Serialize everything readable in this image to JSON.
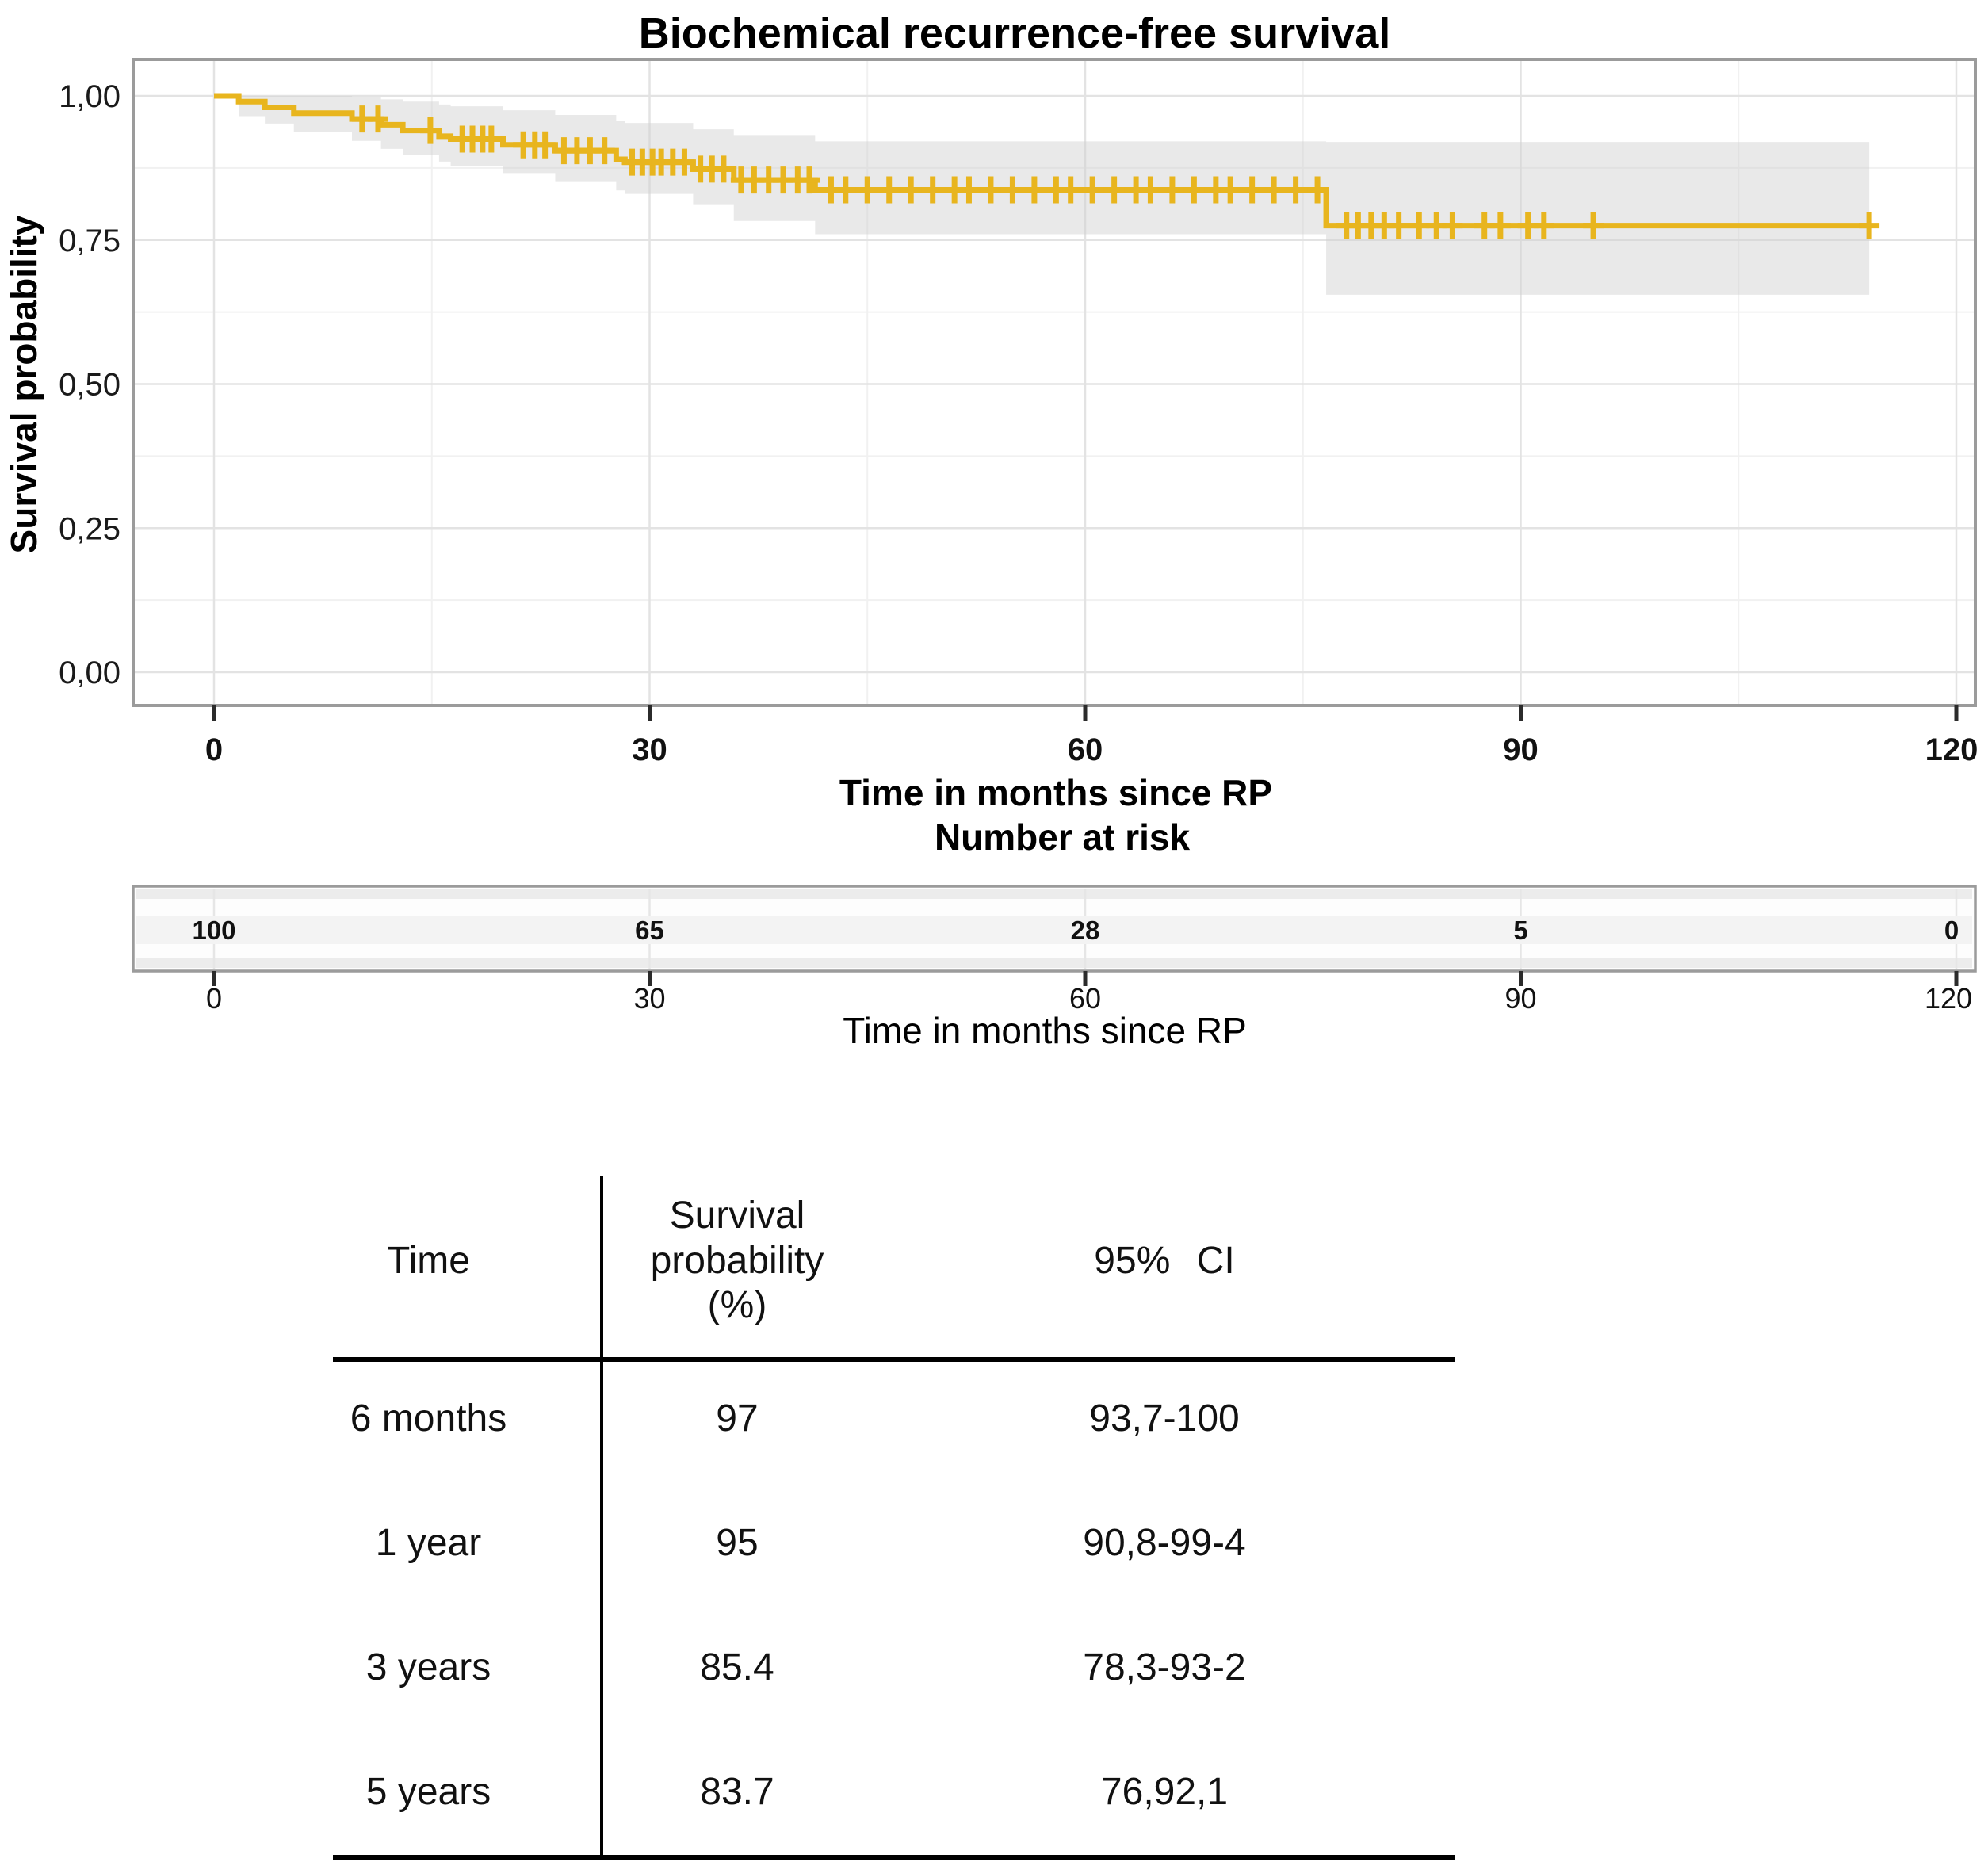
{
  "figure": {
    "title": "Biochemical recurrence-free survival",
    "y_axis_label": "Survival probability",
    "x_axis_label": "Time in months since RP",
    "risk_title": "Number at risk",
    "risk_axis_label": "Time in months since RP"
  },
  "chart_data": {
    "type": "line",
    "subtype": "kaplan-meier-step",
    "title": "Biochemical recurrence-free survival",
    "xlabel": "Time in months since RP",
    "ylabel": "Survival probability",
    "xlim": [
      0,
      120
    ],
    "ylim": [
      0.0,
      1.0
    ],
    "x_ticks": [
      0,
      30,
      60,
      90,
      120
    ],
    "y_ticks": [
      1.0,
      0.75,
      0.5,
      0.25,
      0.0
    ],
    "y_tick_labels": [
      "1,00",
      "0,75",
      "0,50",
      "0,25",
      "0,00"
    ],
    "grid": true,
    "legend": false,
    "colors": {
      "curve": "#E8B51E",
      "ci_band": "#cfcfcf",
      "grid_major": "#e3e3e3",
      "grid_minor": "#f1f1f1",
      "frame": "#9b9b9b"
    },
    "series": [
      {
        "name": "Biochemical recurrence-free survival",
        "start_value": 1.0,
        "end_time": 114,
        "steps": [
          [
            1.7,
            0.99
          ],
          [
            3.5,
            0.98
          ],
          [
            5.5,
            0.97
          ],
          [
            9.5,
            0.96
          ],
          [
            11.5,
            0.95
          ],
          [
            13,
            0.94
          ],
          [
            15.5,
            0.93
          ],
          [
            16.3,
            0.925
          ],
          [
            19.9,
            0.915
          ],
          [
            23.5,
            0.905
          ],
          [
            27.7,
            0.89
          ],
          [
            28.3,
            0.885
          ],
          [
            33,
            0.873
          ],
          [
            35.8,
            0.854
          ],
          [
            41.4,
            0.837
          ],
          [
            76.6,
            0.775
          ]
        ],
        "censor_times": [
          10.2,
          11.3,
          14.9,
          17.1,
          17.8,
          18.5,
          19.1,
          21.3,
          22.1,
          22.8,
          24.1,
          25.0,
          25.9,
          26.9,
          28.8,
          29.5,
          30.2,
          30.8,
          31.6,
          32.4,
          33.5,
          34.3,
          35.1,
          36.3,
          37.2,
          38.2,
          39.2,
          40.2,
          41.0,
          42.5,
          43.5,
          45.0,
          46.5,
          48.0,
          49.5,
          51.0,
          52.0,
          53.5,
          55.0,
          56.5,
          58.0,
          59.0,
          60.5,
          62.0,
          63.5,
          64.5,
          66.0,
          67.5,
          69.0,
          70.0,
          71.5,
          73.0,
          74.5,
          76.0,
          78.0,
          78.8,
          79.7,
          80.6,
          81.6,
          83.0,
          84.2,
          85.3,
          87.5,
          88.6,
          90.5,
          91.6,
          95.0,
          114
        ],
        "ci_steps": [
          [
            0,
            1.0,
            1.0
          ],
          [
            1.7,
            0.965,
            1.0
          ],
          [
            3.5,
            0.952,
            1.0
          ],
          [
            5.5,
            0.937,
            1.0
          ],
          [
            9.5,
            0.922,
            0.998
          ],
          [
            11.5,
            0.908,
            0.994
          ],
          [
            13,
            0.898,
            0.99
          ],
          [
            15.5,
            0.886,
            0.985
          ],
          [
            16.3,
            0.879,
            0.982
          ],
          [
            19.9,
            0.866,
            0.975
          ],
          [
            23.5,
            0.852,
            0.967
          ],
          [
            27.7,
            0.836,
            0.956
          ],
          [
            28.3,
            0.83,
            0.953
          ],
          [
            33,
            0.812,
            0.942
          ],
          [
            35.8,
            0.783,
            0.932
          ],
          [
            41.4,
            0.76,
            0.921
          ],
          [
            76.6,
            0.655,
            0.92
          ]
        ]
      }
    ],
    "number_at_risk": {
      "title": "Number at risk",
      "times": [
        0,
        30,
        60,
        90,
        120
      ],
      "counts": [
        "100",
        "65",
        "28",
        "5",
        "0"
      ],
      "axis_label": "Time in months since RP"
    }
  },
  "table": {
    "headers": {
      "time": "Time",
      "survival": "Survival\nprobability\n(%)",
      "ci": "95% CI"
    },
    "rows": [
      {
        "time": "6 months",
        "survival": "97",
        "ci": "93,7-100"
      },
      {
        "time": "1 year",
        "survival": "95",
        "ci": "90,8-99-4"
      },
      {
        "time": "3 years",
        "survival": "85.4",
        "ci": "78,3-93-2"
      },
      {
        "time": "5 years",
        "survival": "83.7",
        "ci": "76,92,1"
      }
    ]
  }
}
